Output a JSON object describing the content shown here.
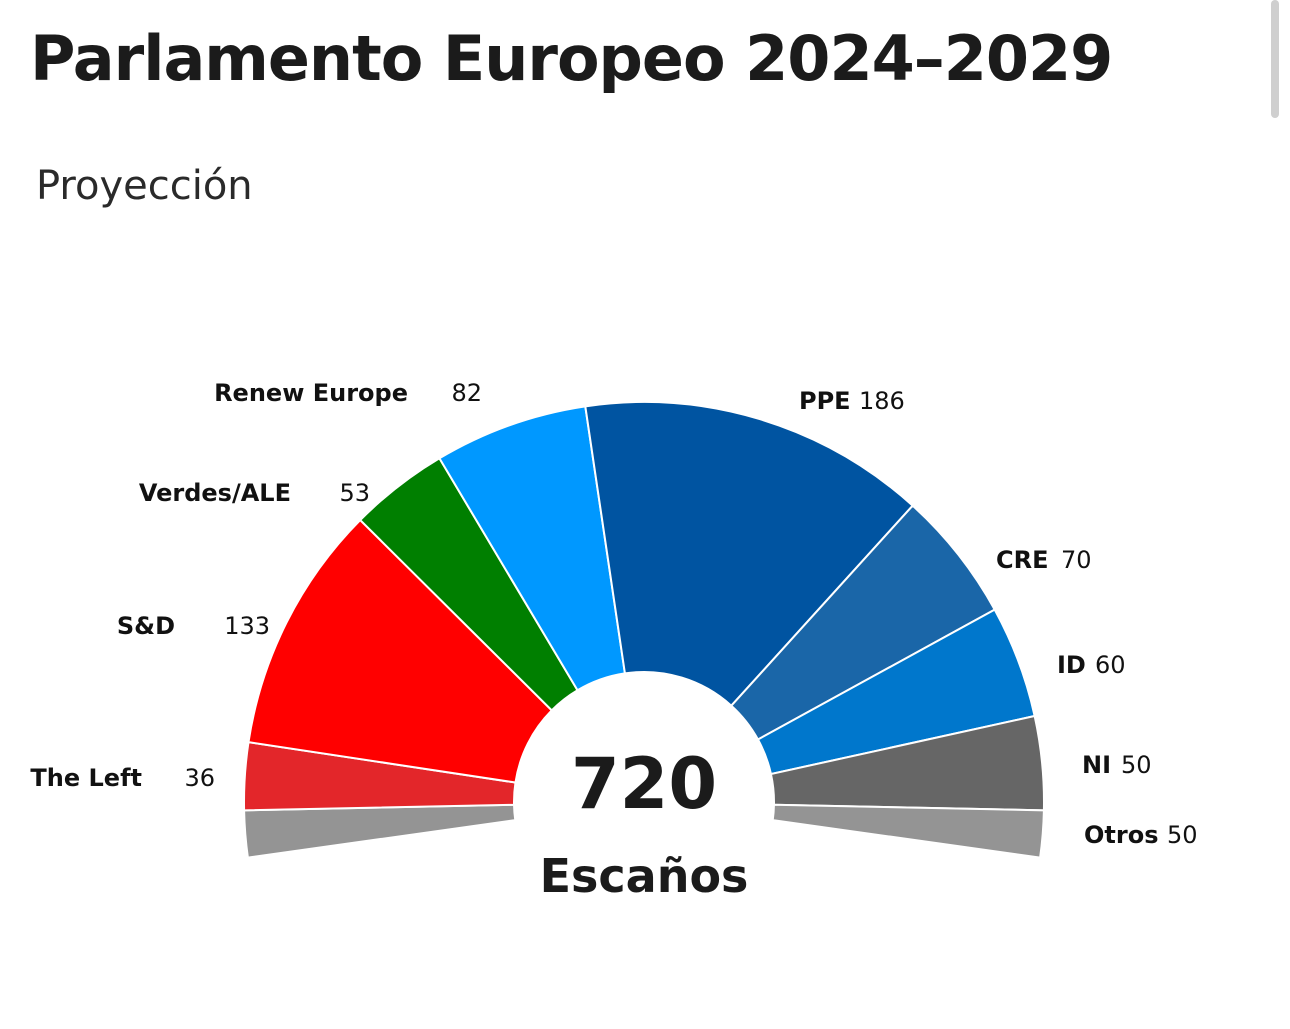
{
  "page": {
    "title": "Parlamento Europeo 2024–2029",
    "subtitle": "Proyección"
  },
  "chart_data": {
    "type": "pie",
    "variant": "half-donut parliament",
    "title": "Parlamento Europeo 2024–2029",
    "subtitle": "Proyección",
    "total": "720",
    "total_label": "Escaños",
    "slices": [
      {
        "name": "Otros",
        "value": 50,
        "value_label": "50",
        "color": "#949494",
        "side": "split"
      },
      {
        "name": "The Left",
        "value": 36,
        "value_label": "36",
        "color": "#e3262a",
        "side": "left"
      },
      {
        "name": "S&D",
        "value": 133,
        "value_label": "133",
        "color": "#ff0000",
        "side": "left"
      },
      {
        "name": "Verdes/ALE",
        "value": 53,
        "value_label": "53",
        "color": "#007f00",
        "side": "left"
      },
      {
        "name": "Renew Europe",
        "value": 82,
        "value_label": "82",
        "color": "#0098ff",
        "side": "left"
      },
      {
        "name": "PPE",
        "value": 186,
        "value_label": "186",
        "color": "#0054a1",
        "side": "right"
      },
      {
        "name": "CRE",
        "value": 70,
        "value_label": "70",
        "color": "#1a66a8",
        "side": "right"
      },
      {
        "name": "ID",
        "value": 60,
        "value_label": "60",
        "color": "#0077cc",
        "side": "right"
      },
      {
        "name": "NI",
        "value": 50,
        "value_label": "50",
        "color": "#666666",
        "side": "right"
      }
    ],
    "legend": "labels around arc"
  }
}
